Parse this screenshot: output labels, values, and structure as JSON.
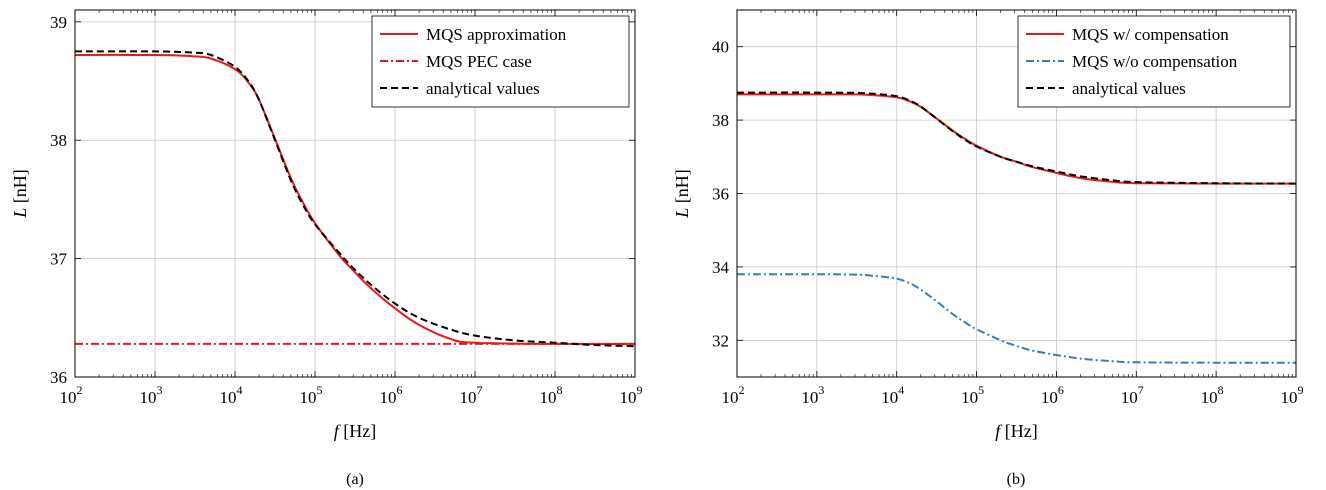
{
  "chart_data": [
    {
      "type": "line",
      "caption": "(a)",
      "xlabel": {
        "sym": "f",
        "unit": " [Hz]"
      },
      "ylabel": {
        "sym": "L",
        "unit": " [nH]"
      },
      "xscale": "log",
      "xlim": [
        100,
        1000000000
      ],
      "ylim": [
        36,
        39.1
      ],
      "xticks": [
        100,
        1000,
        10000,
        100000,
        1000000,
        10000000,
        100000000,
        1000000000
      ],
      "xtick_labels": [
        "2",
        "3",
        "4",
        "5",
        "6",
        "7",
        "8",
        "9"
      ],
      "yticks": [
        36,
        37,
        38,
        39
      ],
      "ytick_labels": [
        "36",
        "37",
        "38",
        "39"
      ],
      "grid": true,
      "legend_position": "top-right",
      "series": [
        {
          "name": "MQS approximation",
          "style": "solid",
          "color": "#e41a1c",
          "x": [
            100,
            1000,
            3000,
            5000,
            10000,
            15000,
            20000,
            30000,
            50000,
            70000,
            100000,
            200000,
            300000,
            500000,
            1000000,
            2000000,
            5000000,
            10000000,
            100000000,
            1000000000
          ],
          "y": [
            38.72,
            38.72,
            38.71,
            38.69,
            38.6,
            38.48,
            38.34,
            38.05,
            37.68,
            37.48,
            37.3,
            37.03,
            36.9,
            36.75,
            36.58,
            36.44,
            36.32,
            36.29,
            36.28,
            36.28
          ]
        },
        {
          "name": "MQS PEC case",
          "style": "dashdot",
          "color": "#e41a1c",
          "x": [
            100,
            1000000000
          ],
          "y": [
            36.28,
            36.28
          ]
        },
        {
          "name": "analytical values",
          "style": "dashed",
          "color": "#000000",
          "x": [
            100,
            1000,
            3000,
            5000,
            10000,
            15000,
            20000,
            30000,
            50000,
            70000,
            100000,
            200000,
            300000,
            500000,
            1000000,
            2000000,
            5000000,
            10000000,
            30000000,
            100000000,
            300000000,
            1000000000
          ],
          "y": [
            38.75,
            38.75,
            38.74,
            38.72,
            38.62,
            38.49,
            38.34,
            38.04,
            37.66,
            37.46,
            37.29,
            37.05,
            36.92,
            36.78,
            36.62,
            36.5,
            36.4,
            36.35,
            36.31,
            36.29,
            36.27,
            36.26
          ]
        }
      ]
    },
    {
      "type": "line",
      "caption": "(b)",
      "xlabel": {
        "sym": "f",
        "unit": " [Hz]"
      },
      "ylabel": {
        "sym": "L",
        "unit": " [nH]"
      },
      "xscale": "log",
      "xlim": [
        100,
        1000000000
      ],
      "ylim": [
        31,
        41
      ],
      "xticks": [
        100,
        1000,
        10000,
        100000,
        1000000,
        10000000,
        100000000,
        1000000000
      ],
      "xtick_labels": [
        "2",
        "3",
        "4",
        "5",
        "6",
        "7",
        "8",
        "9"
      ],
      "yticks": [
        32,
        34,
        36,
        38,
        40
      ],
      "ytick_labels": [
        "32",
        "34",
        "36",
        "38",
        "40"
      ],
      "grid": true,
      "legend_position": "top-right",
      "series": [
        {
          "name": "MQS w/ compensation",
          "style": "solid",
          "color": "#e41a1c",
          "x": [
            100,
            1000,
            3000,
            5000,
            10000,
            15000,
            20000,
            30000,
            50000,
            70000,
            100000,
            200000,
            300000,
            500000,
            1000000,
            2000000,
            5000000,
            10000000,
            100000000,
            1000000000
          ],
          "y": [
            38.7,
            38.7,
            38.7,
            38.68,
            38.62,
            38.5,
            38.36,
            38.08,
            37.72,
            37.5,
            37.3,
            37.0,
            36.88,
            36.72,
            36.56,
            36.42,
            36.32,
            36.28,
            36.27,
            36.27
          ]
        },
        {
          "name": "MQS w/o compensation",
          "style": "dashdot",
          "color": "#377eb8",
          "x": [
            100,
            1000,
            3000,
            5000,
            10000,
            15000,
            20000,
            30000,
            50000,
            70000,
            100000,
            200000,
            300000,
            500000,
            1000000,
            2000000,
            5000000,
            10000000,
            100000000,
            1000000000
          ],
          "y": [
            33.8,
            33.8,
            33.79,
            33.76,
            33.68,
            33.54,
            33.38,
            33.1,
            32.72,
            32.5,
            32.3,
            32.0,
            31.86,
            31.72,
            31.6,
            31.5,
            31.43,
            31.4,
            31.39,
            31.39
          ]
        },
        {
          "name": "analytical values",
          "style": "dashed",
          "color": "#000000",
          "x": [
            100,
            1000,
            3000,
            5000,
            10000,
            15000,
            20000,
            30000,
            50000,
            70000,
            100000,
            200000,
            300000,
            500000,
            1000000,
            2000000,
            5000000,
            10000000,
            100000000,
            1000000000
          ],
          "y": [
            38.75,
            38.75,
            38.74,
            38.72,
            38.65,
            38.52,
            38.37,
            38.08,
            37.7,
            37.48,
            37.28,
            37.0,
            36.88,
            36.74,
            36.6,
            36.47,
            36.36,
            36.31,
            36.28,
            36.27
          ]
        }
      ]
    }
  ]
}
